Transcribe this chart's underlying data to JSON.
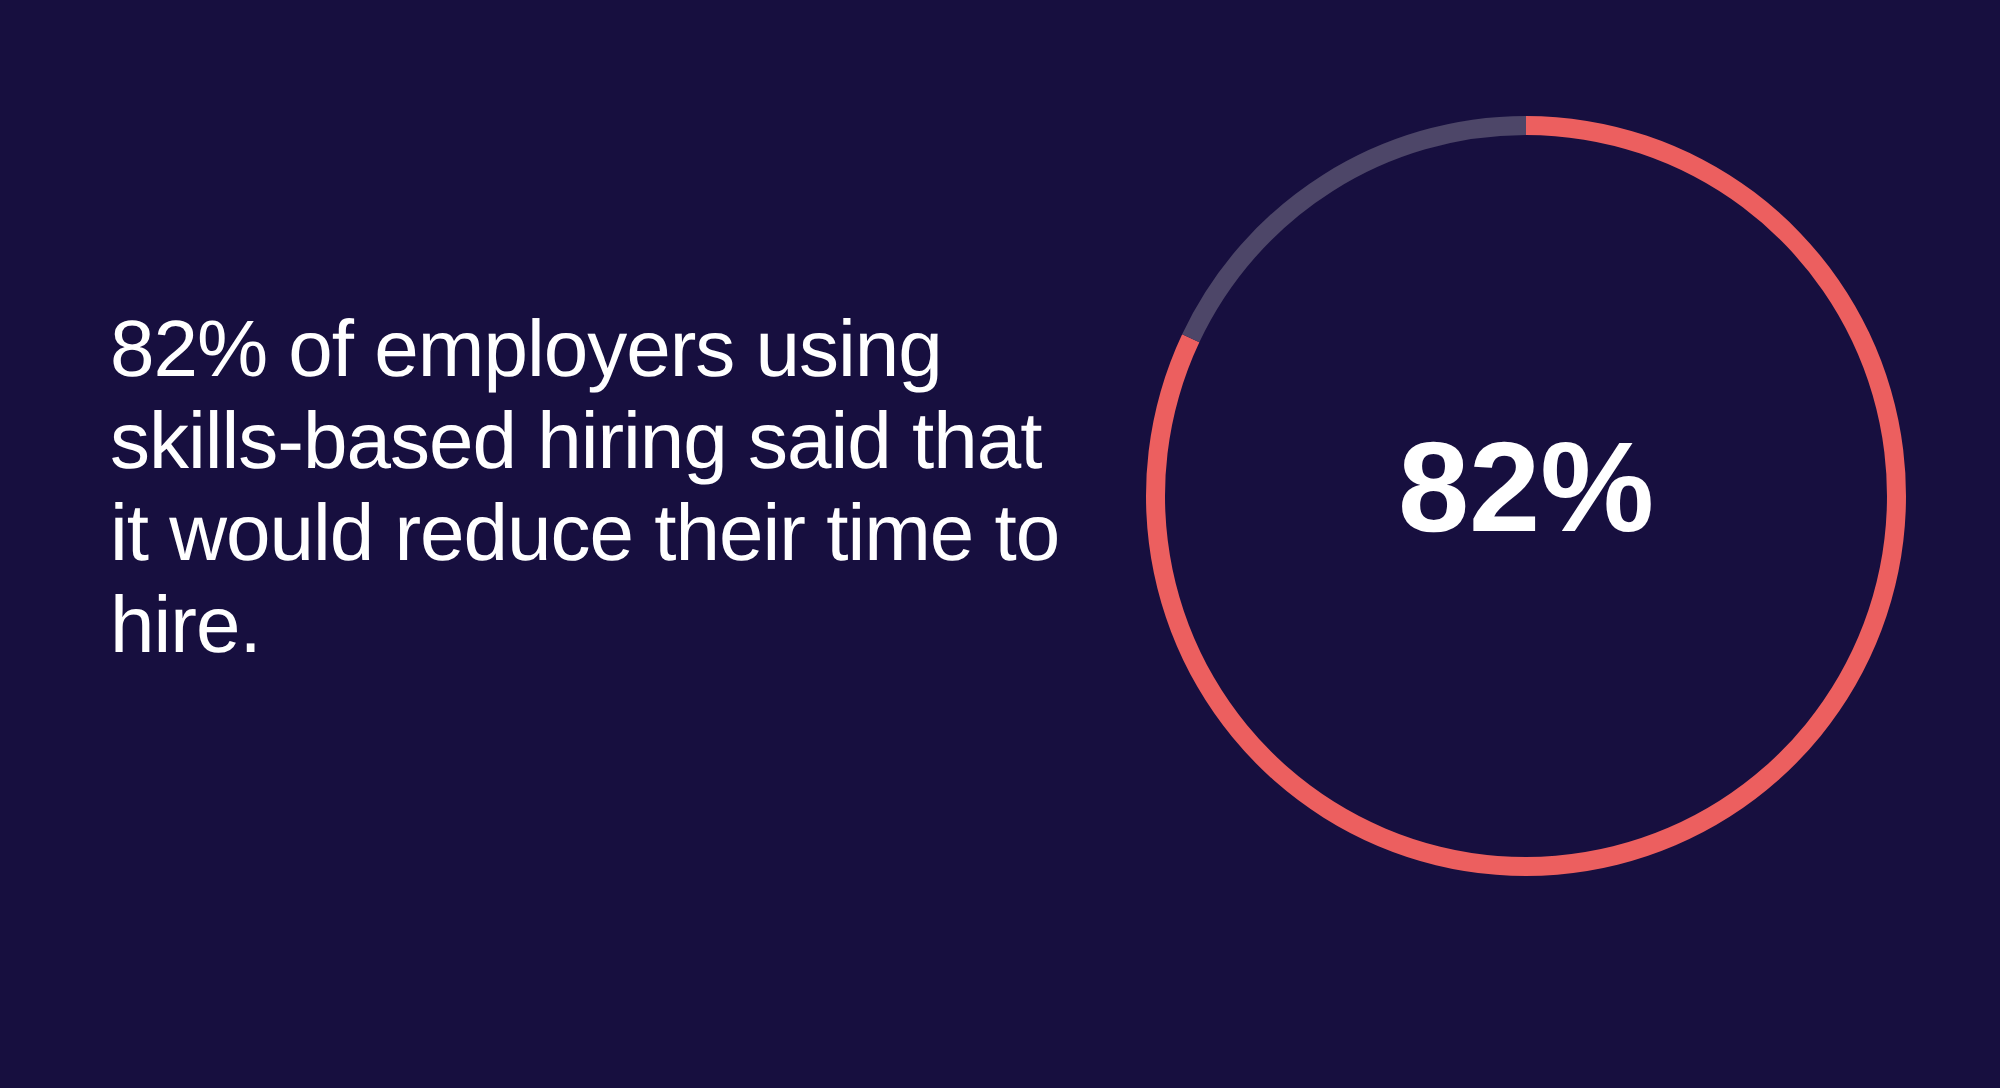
{
  "chart_data": {
    "type": "donut",
    "title": "82% of employers using skills-based hiring said that it would reduce their time to hire.",
    "categories": [
      null,
      null
    ],
    "values": [
      82,
      18
    ],
    "colors": [
      "#ec5f5f",
      "#4d4668"
    ],
    "value_labels": [
      "82%",
      null
    ],
    "legend": false
  }
}
